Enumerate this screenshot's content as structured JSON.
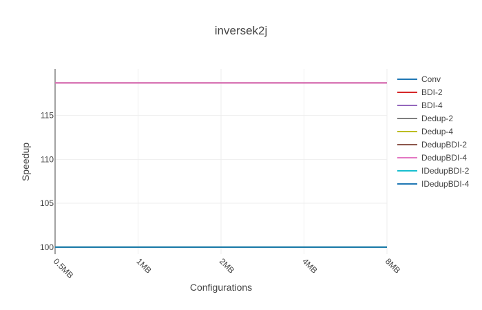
{
  "chart_data": {
    "type": "line",
    "title": "inversek2j",
    "xlabel": "Configurations",
    "ylabel": "Speedup",
    "categories": [
      "0.5MB",
      "1MB",
      "2MB",
      "4MB",
      "8MB"
    ],
    "ylim": [
      99.2,
      120.3
    ],
    "yticks": [
      100,
      105,
      110,
      115
    ],
    "grid": true,
    "legend_position": "right",
    "series": [
      {
        "name": "Conv",
        "color": "#1f77b4",
        "values": [
          100,
          100,
          100,
          100,
          100
        ]
      },
      {
        "name": "BDI-2",
        "color": "#d62728",
        "values": [
          118.7,
          118.7,
          118.7,
          118.7,
          118.7
        ]
      },
      {
        "name": "BDI-4",
        "color": "#9467bd",
        "values": [
          118.7,
          118.7,
          118.7,
          118.7,
          118.7
        ]
      },
      {
        "name": "Dedup-2",
        "color": "#7f7f7f",
        "values": [
          100,
          100,
          100,
          100,
          100
        ]
      },
      {
        "name": "Dedup-4",
        "color": "#bcbd22",
        "values": [
          100,
          100,
          100,
          100,
          100
        ]
      },
      {
        "name": "DedupBDI-2",
        "color": "#8c564b",
        "values": [
          118.7,
          118.7,
          118.7,
          118.7,
          118.7
        ]
      },
      {
        "name": "DedupBDI-4",
        "color": "#e377c2",
        "values": [
          118.7,
          118.7,
          118.7,
          118.7,
          118.7
        ]
      },
      {
        "name": "IDedupBDI-2",
        "color": "#17becf",
        "values": [
          100,
          100,
          100,
          100,
          100
        ]
      },
      {
        "name": "IDedupBDI-4",
        "color": "#1f77b4",
        "values": [
          100,
          100,
          100,
          100,
          100
        ]
      }
    ]
  }
}
